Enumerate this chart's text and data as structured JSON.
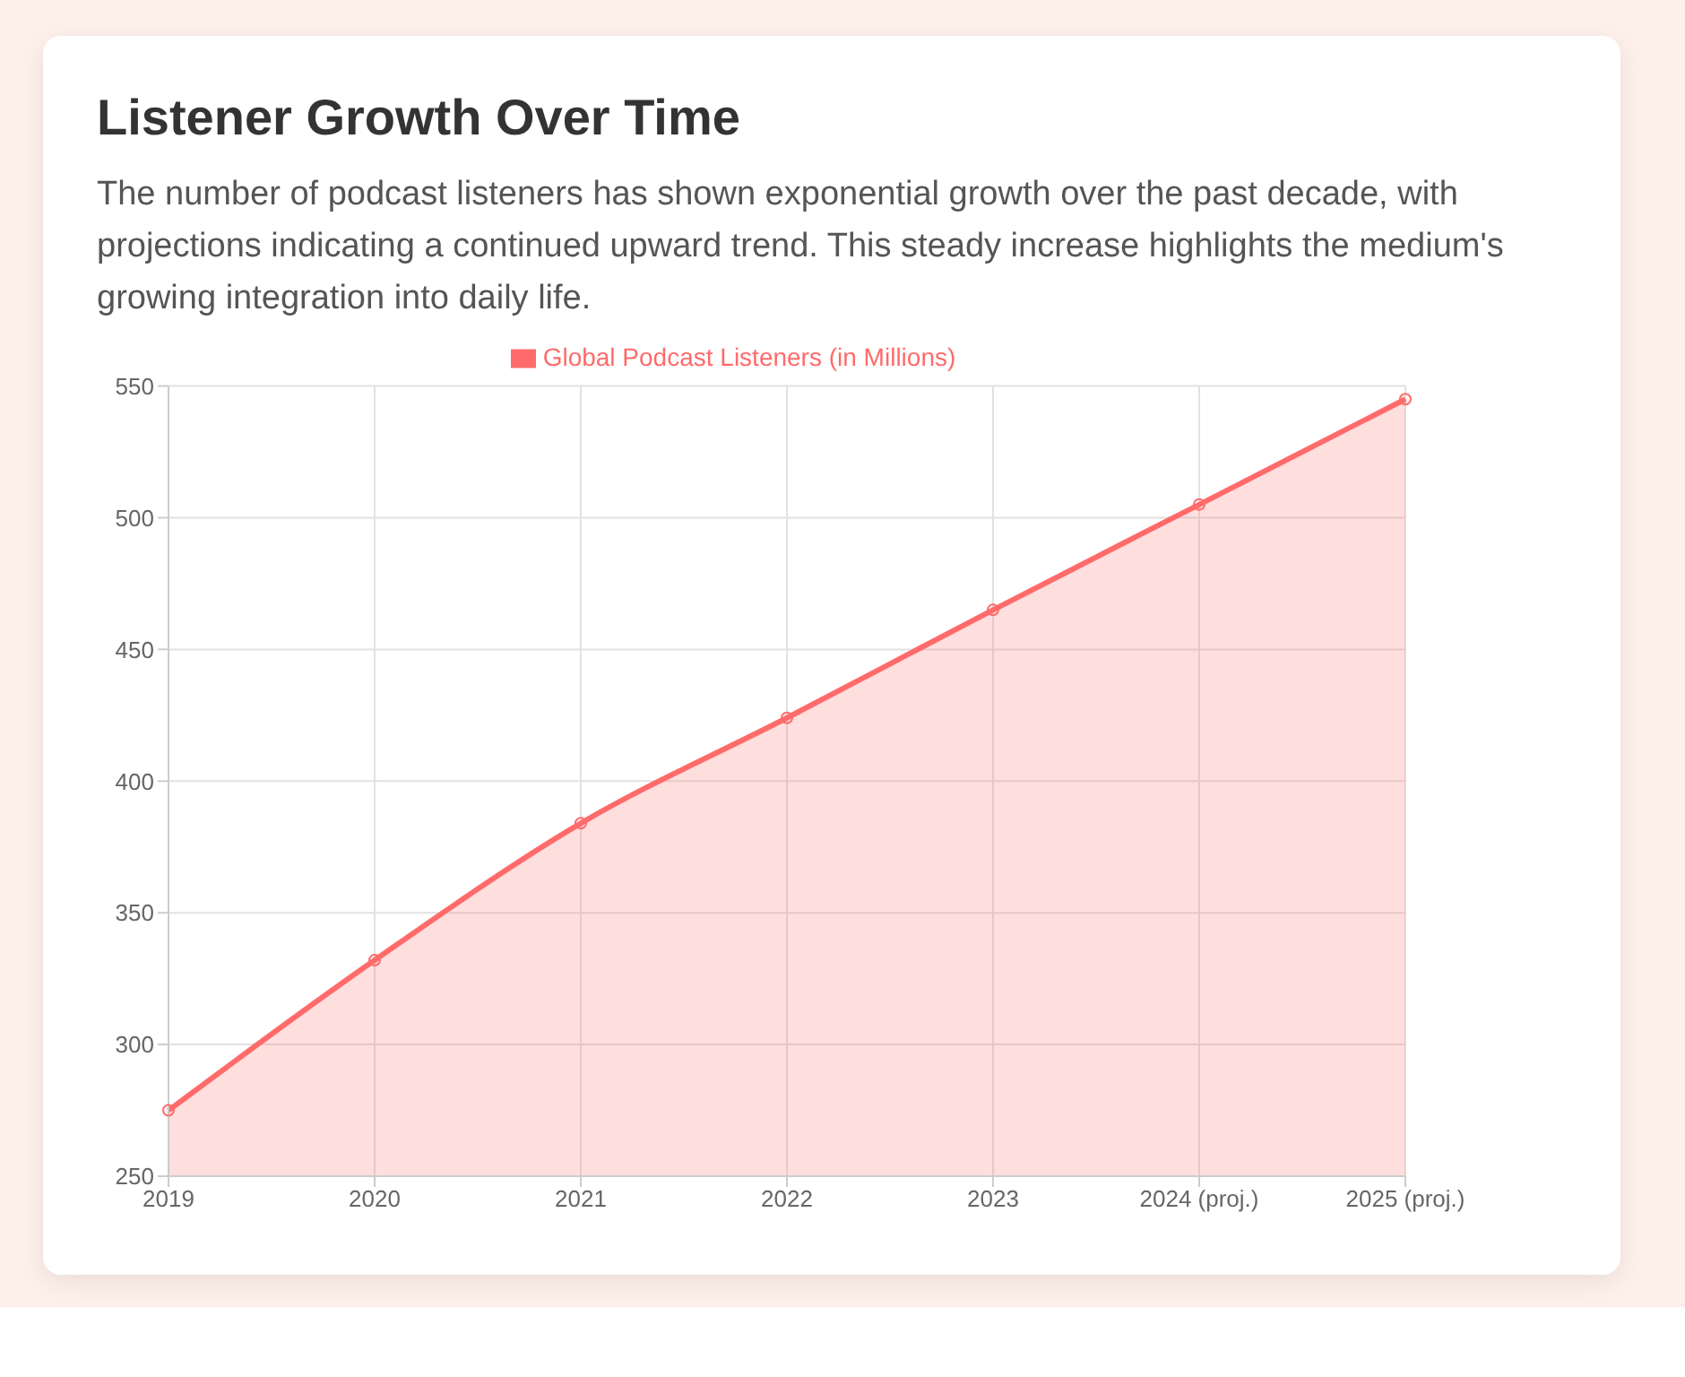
{
  "chart_data": {
    "type": "area",
    "title": "Listener Growth Over Time",
    "subtitle": "The number of podcast listeners has shown exponential growth over the past decade, with projections indicating a continued upward trend. This steady increase highlights the medium's growing integration into daily life.",
    "categories": [
      "2019",
      "2020",
      "2021",
      "2022",
      "2023",
      "2024 (proj.)",
      "2025 (proj.)"
    ],
    "series": [
      {
        "name": "Global Podcast Listeners (in Millions)",
        "color": "#ff6b6b",
        "values": [
          275,
          332,
          384,
          424,
          465,
          505,
          545
        ]
      }
    ],
    "ylim": [
      250,
      550
    ],
    "yticks": [
      250,
      300,
      350,
      400,
      450,
      500,
      550
    ],
    "grid": true,
    "legend": "top",
    "marker": "circle"
  }
}
